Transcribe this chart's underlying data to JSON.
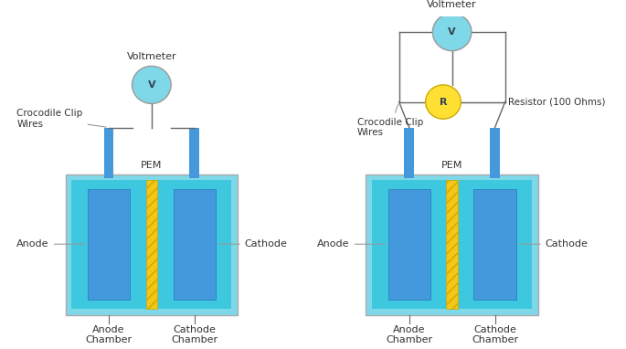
{
  "bg_color": "#ffffff",
  "cyan_outer": "#7FD8E8",
  "cyan_inner": "#3EC8E0",
  "blue_electrode": "#4499DD",
  "blue_dark": "#2277BB",
  "yellow_pem": "#F5C518",
  "voltmeter_color": "#7FD8E8",
  "resistor_color": "#FFE033",
  "wire_color": "#666666",
  "text_color": "#333333",
  "label_voltmeter": "Voltmeter",
  "label_v": "V",
  "label_r": "R",
  "label_resistor": "Resistor (100 Ohms)",
  "label_pem": "PEM",
  "label_anode": "Anode",
  "label_cathode": "Cathode",
  "label_anode_chamber": "Anode\nChamber",
  "label_cathode_chamber": "Cathode\nChamber",
  "label_clip": "Crocodile Clip\nWires"
}
